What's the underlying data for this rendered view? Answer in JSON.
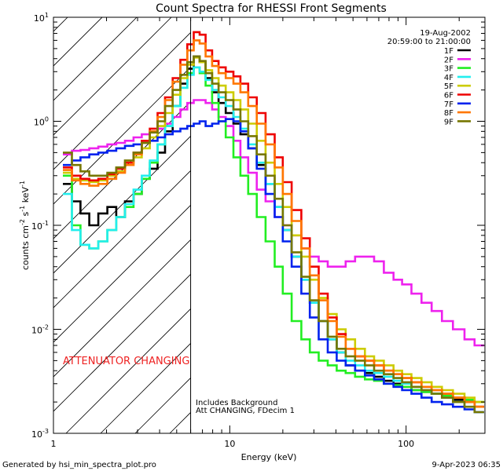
{
  "chart_data": {
    "type": "line",
    "title": "Count Spectra for RHESSI Front Segments",
    "xlabel": "Energy (keV)",
    "ylabel_main": "counts cm",
    "ylabel_exp1": "-2",
    "ylabel_mid": " s",
    "ylabel_exp2": "-1",
    "ylabel_end": " keV",
    "ylabel_exp3": "-1",
    "xscale": "log",
    "yscale": "log",
    "xlim": [
      1,
      280
    ],
    "ylim": [
      0.001,
      10
    ],
    "x_tick_labels": [
      {
        "value": 1,
        "label": "1"
      },
      {
        "value": 10,
        "label": "10"
      },
      {
        "value": 100,
        "label": "100"
      }
    ],
    "y_tick_labels": [
      {
        "value": 0.001,
        "base": "10",
        "exp": "-3"
      },
      {
        "value": 0.01,
        "base": "10",
        "exp": "-2"
      },
      {
        "value": 0.1,
        "base": "10",
        "exp": "-1"
      },
      {
        "value": 1,
        "base": "10",
        "exp": "0"
      },
      {
        "value": 10,
        "base": "10",
        "exp": "1"
      }
    ],
    "date": "19-Aug-2002",
    "time_range": "20:59:00 to 21:00:00",
    "attenuator_label": "ATTENUATOR CHANGING",
    "attenuator_color": "#ee2222",
    "attenuator_line_energy": 6,
    "note_line1": "Includes Background",
    "note_line2": "Att CHANGING, FDecim 1",
    "series": [
      {
        "name": "1F",
        "color": "#000000",
        "x": [
          1.2,
          1.35,
          1.5,
          1.7,
          1.9,
          2.15,
          2.4,
          2.7,
          3.0,
          3.35,
          3.7,
          4.1,
          4.5,
          5.0,
          5.5,
          6.0,
          6.5,
          7.0,
          7.6,
          8.3,
          9.0,
          10,
          11,
          12,
          13.5,
          15,
          17,
          19,
          21,
          24,
          27,
          30,
          34,
          38,
          43,
          48,
          55,
          62,
          70,
          80,
          90,
          100,
          115,
          130,
          150,
          170,
          200,
          230,
          260
        ],
        "y": [
          0.25,
          0.17,
          0.13,
          0.1,
          0.13,
          0.15,
          0.12,
          0.17,
          0.2,
          0.28,
          0.35,
          0.5,
          0.8,
          1.4,
          2.3,
          3.2,
          4.2,
          3.7,
          2.6,
          1.9,
          1.5,
          1.2,
          0.95,
          0.75,
          0.55,
          0.38,
          0.25,
          0.15,
          0.09,
          0.05,
          0.03,
          0.018,
          0.012,
          0.008,
          0.006,
          0.0045,
          0.004,
          0.0038,
          0.0035,
          0.0032,
          0.003,
          0.0028,
          0.0026,
          0.0025,
          0.0024,
          0.0022,
          0.0021,
          0.002,
          0.0018
        ]
      },
      {
        "name": "2F",
        "color": "#ee22ee",
        "x": [
          1.2,
          1.35,
          1.5,
          1.7,
          1.9,
          2.15,
          2.4,
          2.7,
          3.0,
          3.35,
          3.7,
          4.1,
          4.5,
          5.0,
          5.5,
          6.0,
          6.5,
          7.0,
          7.6,
          8.3,
          9.0,
          10,
          11,
          12,
          13.5,
          15,
          17,
          19,
          21,
          24,
          27,
          30,
          34,
          38,
          43,
          48,
          55,
          62,
          70,
          80,
          90,
          100,
          115,
          130,
          150,
          170,
          200,
          230,
          260
        ],
        "y": [
          0.48,
          0.52,
          0.53,
          0.55,
          0.57,
          0.6,
          0.62,
          0.65,
          0.7,
          0.75,
          0.8,
          0.85,
          0.95,
          1.1,
          1.3,
          1.5,
          1.6,
          1.6,
          1.5,
          1.3,
          1.1,
          0.9,
          0.65,
          0.45,
          0.32,
          0.22,
          0.17,
          0.12,
          0.1,
          0.08,
          0.06,
          0.05,
          0.045,
          0.04,
          0.04,
          0.045,
          0.05,
          0.05,
          0.045,
          0.035,
          0.03,
          0.027,
          0.022,
          0.018,
          0.015,
          0.012,
          0.01,
          0.008,
          0.007
        ]
      },
      {
        "name": "3F",
        "color": "#22ee22",
        "x": [
          1.2,
          1.35,
          1.5,
          1.7,
          1.9,
          2.15,
          2.4,
          2.7,
          3.0,
          3.35,
          3.7,
          4.1,
          4.5,
          5.0,
          5.5,
          6.0,
          6.5,
          7.0,
          7.6,
          8.3,
          9.0,
          10,
          11,
          12,
          13.5,
          15,
          17,
          19,
          21,
          24,
          27,
          30,
          34,
          38,
          43,
          48,
          55,
          62,
          70,
          80,
          90,
          100,
          115,
          130,
          150,
          170,
          200,
          230,
          260
        ],
        "y": [
          0.3,
          0.1,
          0.065,
          0.06,
          0.07,
          0.09,
          0.12,
          0.15,
          0.2,
          0.28,
          0.4,
          0.6,
          0.9,
          1.4,
          2.1,
          2.9,
          3.3,
          2.9,
          2.2,
          1.5,
          1.0,
          0.7,
          0.45,
          0.3,
          0.2,
          0.12,
          0.07,
          0.04,
          0.022,
          0.012,
          0.008,
          0.006,
          0.005,
          0.0045,
          0.004,
          0.0038,
          0.0035,
          0.0033,
          0.0032,
          0.003,
          0.0029,
          0.0028,
          0.0026,
          0.0025,
          0.0024,
          0.0023,
          0.0022,
          0.0021,
          0.002
        ]
      },
      {
        "name": "4F",
        "color": "#22eeee",
        "x": [
          1.2,
          1.35,
          1.5,
          1.7,
          1.9,
          2.15,
          2.4,
          2.7,
          3.0,
          3.35,
          3.7,
          4.1,
          4.5,
          5.0,
          5.5,
          6.0,
          6.5,
          7.0,
          7.6,
          8.3,
          9.0,
          10,
          11,
          12,
          13.5,
          15,
          17,
          19,
          21,
          24,
          27,
          30,
          34,
          38,
          43,
          48,
          55,
          62,
          70,
          80,
          90,
          100,
          115,
          130,
          150,
          170,
          200,
          230,
          260
        ],
        "y": [
          0.2,
          0.09,
          0.065,
          0.06,
          0.07,
          0.09,
          0.12,
          0.16,
          0.22,
          0.3,
          0.42,
          0.6,
          0.9,
          1.4,
          2.1,
          2.8,
          3.3,
          3.0,
          2.5,
          2.0,
          1.7,
          1.4,
          1.1,
          0.85,
          0.6,
          0.4,
          0.25,
          0.15,
          0.09,
          0.05,
          0.03,
          0.018,
          0.012,
          0.008,
          0.006,
          0.005,
          0.0045,
          0.004,
          0.0038,
          0.0035,
          0.0032,
          0.003,
          0.0028,
          0.0026,
          0.0024,
          0.0022,
          0.002,
          0.0018,
          0.0016
        ]
      },
      {
        "name": "5F",
        "color": "#cccc00",
        "x": [
          1.2,
          1.35,
          1.5,
          1.7,
          1.9,
          2.15,
          2.4,
          2.7,
          3.0,
          3.35,
          3.7,
          4.1,
          4.5,
          5.0,
          5.5,
          6.0,
          6.5,
          7.0,
          7.6,
          8.3,
          9.0,
          10,
          11,
          12,
          13.5,
          15,
          17,
          19,
          21,
          24,
          27,
          30,
          34,
          38,
          43,
          48,
          55,
          62,
          70,
          80,
          90,
          100,
          115,
          130,
          150,
          170,
          200,
          230,
          260
        ],
        "y": [
          0.32,
          0.28,
          0.27,
          0.26,
          0.27,
          0.3,
          0.33,
          0.38,
          0.45,
          0.55,
          0.7,
          0.9,
          1.2,
          1.8,
          2.6,
          3.5,
          4.1,
          3.7,
          3.1,
          2.6,
          2.2,
          1.9,
          1.6,
          1.3,
          0.95,
          0.65,
          0.4,
          0.25,
          0.15,
          0.08,
          0.05,
          0.03,
          0.02,
          0.014,
          0.01,
          0.008,
          0.0065,
          0.0055,
          0.005,
          0.0045,
          0.004,
          0.0037,
          0.0034,
          0.0031,
          0.0028,
          0.0026,
          0.0024,
          0.0022,
          0.002
        ]
      },
      {
        "name": "6F",
        "color": "#ee0000",
        "x": [
          1.2,
          1.35,
          1.5,
          1.7,
          1.9,
          2.15,
          2.4,
          2.7,
          3.0,
          3.35,
          3.7,
          4.1,
          4.5,
          5.0,
          5.5,
          6.0,
          6.5,
          7.0,
          7.6,
          8.3,
          9.0,
          10,
          11,
          12,
          13.5,
          15,
          17,
          19,
          21,
          24,
          27,
          30,
          34,
          38,
          43,
          48,
          55,
          62,
          70,
          80,
          90,
          100,
          115,
          130,
          150,
          170,
          200,
          230,
          260
        ],
        "y": [
          0.36,
          0.3,
          0.28,
          0.27,
          0.28,
          0.31,
          0.35,
          0.4,
          0.5,
          0.65,
          0.85,
          1.2,
          1.7,
          2.6,
          3.9,
          5.5,
          7.2,
          6.8,
          4.8,
          3.8,
          3.3,
          3.0,
          2.7,
          2.3,
          1.7,
          1.2,
          0.75,
          0.45,
          0.26,
          0.14,
          0.075,
          0.04,
          0.022,
          0.013,
          0.009,
          0.0065,
          0.0055,
          0.005,
          0.0045,
          0.004,
          0.0037,
          0.0034,
          0.0031,
          0.0028,
          0.0026,
          0.0024,
          0.0022,
          0.002,
          0.0018
        ]
      },
      {
        "name": "7F",
        "color": "#0022ee",
        "x": [
          1.2,
          1.35,
          1.5,
          1.7,
          1.9,
          2.15,
          2.4,
          2.7,
          3.0,
          3.35,
          3.7,
          4.1,
          4.5,
          5.0,
          5.5,
          6.0,
          6.5,
          7.0,
          7.6,
          8.3,
          9.0,
          10,
          11,
          12,
          13.5,
          15,
          17,
          19,
          21,
          24,
          27,
          30,
          34,
          38,
          43,
          48,
          55,
          62,
          70,
          80,
          90,
          100,
          115,
          130,
          150,
          170,
          200,
          230,
          260
        ],
        "y": [
          0.38,
          0.42,
          0.45,
          0.48,
          0.5,
          0.52,
          0.55,
          0.58,
          0.6,
          0.62,
          0.65,
          0.7,
          0.75,
          0.8,
          0.85,
          0.9,
          0.95,
          1.0,
          0.9,
          0.95,
          1.0,
          1.05,
          1.0,
          0.8,
          0.55,
          0.35,
          0.2,
          0.12,
          0.07,
          0.04,
          0.022,
          0.013,
          0.008,
          0.006,
          0.005,
          0.0045,
          0.004,
          0.0036,
          0.0033,
          0.003,
          0.0028,
          0.0026,
          0.0024,
          0.0022,
          0.002,
          0.0019,
          0.0018,
          0.0017,
          0.0016
        ]
      },
      {
        "name": "8F",
        "color": "#ff7700",
        "x": [
          1.2,
          1.35,
          1.5,
          1.7,
          1.9,
          2.15,
          2.4,
          2.7,
          3.0,
          3.35,
          3.7,
          4.1,
          4.5,
          5.0,
          5.5,
          6.0,
          6.5,
          7.0,
          7.6,
          8.3,
          9.0,
          10,
          11,
          12,
          13.5,
          15,
          17,
          19,
          21,
          24,
          27,
          30,
          34,
          38,
          43,
          48,
          55,
          62,
          70,
          80,
          90,
          100,
          115,
          130,
          150,
          170,
          200,
          230,
          260
        ],
        "y": [
          0.34,
          0.27,
          0.25,
          0.24,
          0.25,
          0.28,
          0.32,
          0.38,
          0.48,
          0.62,
          0.8,
          1.1,
          1.6,
          2.4,
          3.5,
          4.8,
          6.0,
          5.6,
          4.2,
          3.4,
          2.9,
          2.6,
          2.3,
          1.9,
          1.4,
          0.95,
          0.6,
          0.36,
          0.2,
          0.11,
          0.06,
          0.033,
          0.019,
          0.012,
          0.0085,
          0.0065,
          0.0055,
          0.005,
          0.0045,
          0.004,
          0.0037,
          0.0034,
          0.0031,
          0.0028,
          0.0026,
          0.0024,
          0.0022,
          0.002,
          0.0018
        ]
      },
      {
        "name": "9F",
        "color": "#777700",
        "x": [
          1.2,
          1.35,
          1.5,
          1.7,
          1.9,
          2.15,
          2.4,
          2.7,
          3.0,
          3.35,
          3.7,
          4.1,
          4.5,
          5.0,
          5.5,
          6.0,
          6.5,
          7.0,
          7.6,
          8.3,
          9.0,
          10,
          11,
          12,
          13.5,
          15,
          17,
          19,
          21,
          24,
          27,
          30,
          34,
          38,
          43,
          48,
          55,
          62,
          70,
          80,
          90,
          100,
          115,
          130,
          150,
          170,
          200,
          230,
          260
        ],
        "y": [
          0.5,
          0.38,
          0.33,
          0.3,
          0.3,
          0.32,
          0.36,
          0.42,
          0.5,
          0.62,
          0.78,
          1.0,
          1.4,
          2.0,
          2.8,
          3.7,
          4.2,
          3.8,
          2.9,
          2.3,
          1.9,
          1.6,
          1.3,
          1.0,
          0.72,
          0.48,
          0.3,
          0.18,
          0.1,
          0.055,
          0.032,
          0.019,
          0.012,
          0.0085,
          0.0065,
          0.0055,
          0.005,
          0.0045,
          0.004,
          0.0037,
          0.0034,
          0.0031,
          0.0028,
          0.0026,
          0.0024,
          0.0022,
          0.002,
          0.0018,
          0.0016
        ]
      }
    ]
  },
  "footer": {
    "generated_by": "Generated by hsi_min_spectra_plot.pro",
    "timestamp": "9-Apr-2023 06:35"
  }
}
